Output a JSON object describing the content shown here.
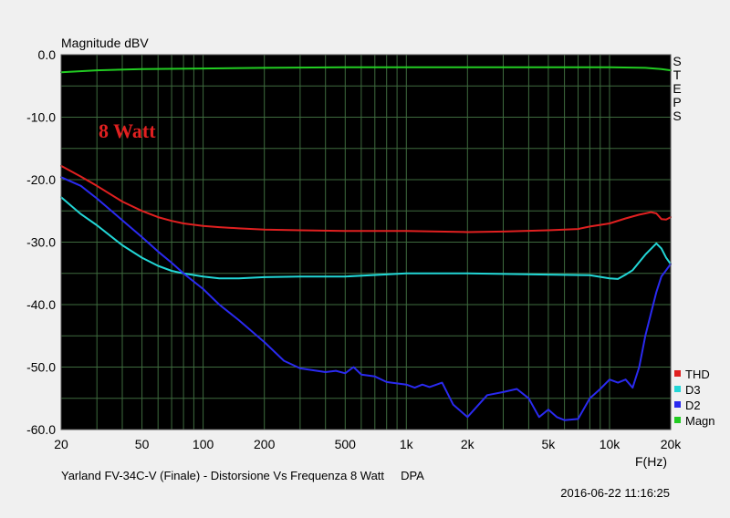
{
  "chart_data": {
    "type": "line",
    "ylabel": "Magnitude dBV",
    "xlabel": "F(Hz)",
    "x_scale": "log",
    "xlim": [
      20,
      20000
    ],
    "ylim": [
      -60,
      0
    ],
    "grid": true,
    "background": "#000000",
    "grid_color": "#3e6b3e",
    "x_ticks": [
      20,
      50,
      100,
      200,
      500,
      1000,
      2000,
      5000,
      10000,
      20000
    ],
    "x_tick_labels": [
      "20",
      "50",
      "100",
      "200",
      "500",
      "1k",
      "2k",
      "5k",
      "10k",
      "20k"
    ],
    "y_ticks": [
      0,
      -10,
      -20,
      -30,
      -40,
      -50,
      -60
    ],
    "y_tick_labels": [
      "0.0",
      "-10.0",
      "-20.0",
      "-30.0",
      "-40.0",
      "-50.0",
      "-60.0"
    ],
    "annotation": "8 Watt",
    "annotation_color": "#e02020",
    "side_label": "STEPS",
    "legend_position": "right",
    "series": [
      {
        "name": "Magn",
        "color": "#22cc22",
        "x": [
          20,
          30,
          50,
          100,
          200,
          500,
          1000,
          2000,
          5000,
          10000,
          15000,
          18000,
          20000
        ],
        "y": [
          -2.8,
          -2.5,
          -2.3,
          -2.2,
          -2.1,
          -2.0,
          -2.0,
          -2.0,
          -2.0,
          -2.0,
          -2.1,
          -2.3,
          -2.5
        ]
      },
      {
        "name": "THD",
        "color": "#e02020",
        "x": [
          20,
          25,
          30,
          40,
          50,
          60,
          70,
          80,
          100,
          120,
          150,
          200,
          300,
          500,
          1000,
          2000,
          3000,
          5000,
          7000,
          8000,
          10000,
          12000,
          14000,
          15000,
          16000,
          17000,
          18000,
          19000,
          20000
        ],
        "y": [
          -17.8,
          -19.5,
          -21.0,
          -23.5,
          -25.0,
          -26.0,
          -26.6,
          -27.0,
          -27.4,
          -27.6,
          -27.8,
          -28.0,
          -28.1,
          -28.2,
          -28.2,
          -28.4,
          -28.3,
          -28.1,
          -27.9,
          -27.5,
          -27.0,
          -26.2,
          -25.6,
          -25.4,
          -25.2,
          -25.4,
          -26.3,
          -26.4,
          -26.0
        ]
      },
      {
        "name": "D3",
        "color": "#22d6d6",
        "x": [
          20,
          25,
          30,
          40,
          50,
          60,
          70,
          80,
          100,
          120,
          150,
          200,
          300,
          500,
          1000,
          2000,
          5000,
          8000,
          10000,
          11000,
          12000,
          13000,
          15000,
          17000,
          18000,
          19000,
          20000
        ],
        "y": [
          -22.8,
          -25.5,
          -27.3,
          -30.5,
          -32.5,
          -33.8,
          -34.6,
          -35.0,
          -35.5,
          -35.8,
          -35.8,
          -35.6,
          -35.5,
          -35.5,
          -35.0,
          -35.0,
          -35.2,
          -35.3,
          -35.8,
          -35.9,
          -35.2,
          -34.5,
          -32.0,
          -30.2,
          -31.0,
          -32.5,
          -33.5
        ]
      },
      {
        "name": "D2",
        "color": "#2a2af0",
        "x": [
          20,
          25,
          30,
          40,
          50,
          60,
          70,
          80,
          100,
          120,
          150,
          200,
          250,
          300,
          400,
          450,
          500,
          550,
          600,
          700,
          800,
          1000,
          1100,
          1200,
          1300,
          1500,
          1700,
          2000,
          2500,
          3000,
          3500,
          4000,
          4500,
          5000,
          5500,
          6000,
          7000,
          8000,
          9000,
          10000,
          11000,
          12000,
          13000,
          14000,
          15000,
          17000,
          18000,
          19000,
          20000
        ],
        "y": [
          -19.6,
          -21.0,
          -23.0,
          -26.5,
          -29.2,
          -31.5,
          -33.3,
          -35.0,
          -37.5,
          -40.0,
          -42.5,
          -46.0,
          -49.0,
          -50.2,
          -50.8,
          -50.6,
          -51.0,
          -50.0,
          -51.2,
          -51.5,
          -52.4,
          -52.8,
          -53.3,
          -52.8,
          -53.2,
          -52.5,
          -56.0,
          -58.0,
          -54.5,
          -54.0,
          -53.5,
          -55.0,
          -58.0,
          -56.8,
          -58.0,
          -58.5,
          -58.3,
          -55.0,
          -53.5,
          -52.0,
          -52.5,
          -52.0,
          -53.3,
          -50.0,
          -45.0,
          -38.0,
          -35.5,
          -34.5,
          -33.5
        ]
      }
    ]
  },
  "footer": {
    "caption": "Yarland FV-34C-V (Finale) - Distorsione Vs Frequenza 8 Watt     DPA",
    "timestamp": "2016-06-22 11:16:25"
  }
}
